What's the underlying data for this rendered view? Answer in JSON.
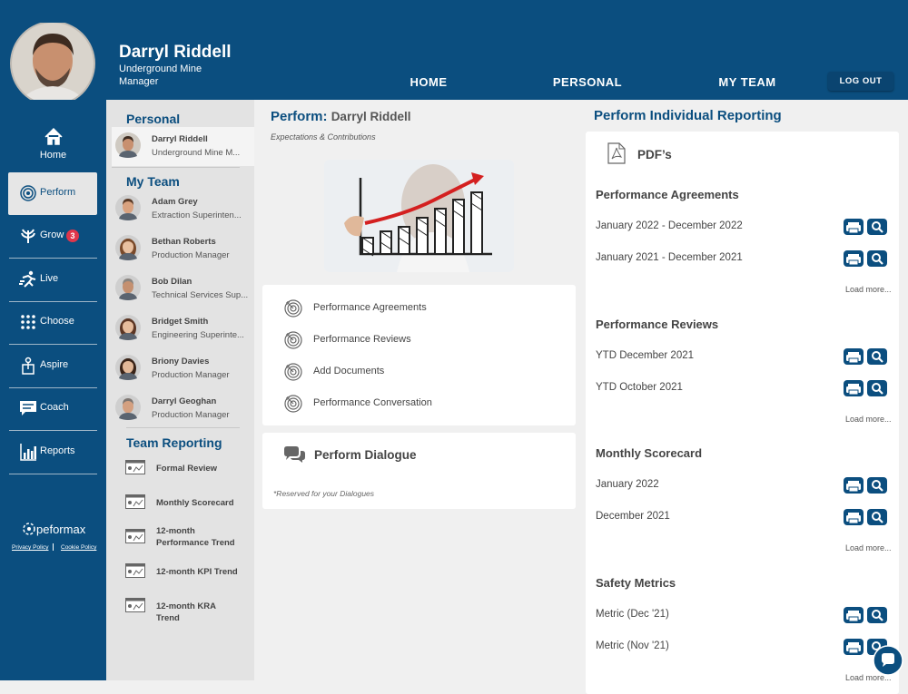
{
  "header": {
    "user_name": "Darryl Riddell",
    "user_role": "Underground Mine Manager",
    "nav": [
      "HOME",
      "PERSONAL",
      "MY TEAM"
    ],
    "logout": "LOG OUT"
  },
  "sidebar": {
    "items": [
      {
        "label": "Home"
      },
      {
        "label": "Perform"
      },
      {
        "label": "Grow",
        "badge": "3"
      },
      {
        "label": "Live"
      },
      {
        "label": "Choose"
      },
      {
        "label": "Aspire"
      },
      {
        "label": "Coach"
      },
      {
        "label": "Reports"
      }
    ],
    "logo": "peformax",
    "links": [
      "Privacy Policy",
      "Cookie Policy"
    ]
  },
  "people_panel": {
    "personal_heading": "Personal",
    "self": {
      "name": "Darryl Riddell",
      "role": "Underground Mine M..."
    },
    "team_heading": "My Team",
    "team": [
      {
        "name": "Adam Grey",
        "role": "Extraction Superinten..."
      },
      {
        "name": "Bethan Roberts",
        "role": "Production Manager"
      },
      {
        "name": "Bob Dilan",
        "role": "Technical Services Sup..."
      },
      {
        "name": "Bridget Smith",
        "role": "Engineering Superinte..."
      },
      {
        "name": "Briony Davies",
        "role": "Production Manager"
      },
      {
        "name": "Darryl Geoghan",
        "role": "Production Manager"
      }
    ],
    "reporting_heading": "Team Reporting",
    "reports": [
      "Formal Review",
      "Monthly Scorecard",
      "12-month Performance Trend",
      "12-month KPI Trend",
      "12-month KRA Trend"
    ]
  },
  "perform": {
    "title_prefix": "Perform:",
    "title_name": "Darryl Riddell",
    "subtitle": "Expectations & Contributions",
    "links": [
      "Performance Agreements",
      "Performance Reviews",
      "Add Documents",
      "Performance Conversation"
    ],
    "dialogue_title": "Perform Dialogue",
    "dialogue_note": "*Reserved for your Dialogues"
  },
  "reporting": {
    "title": "Perform Individual Reporting",
    "pdf_heading": "PDF’s",
    "sections": [
      {
        "title": "Performance Agreements",
        "items": [
          "January 2022 - December 2022",
          "January 2021 - December 2021"
        ],
        "load_more": "Load more..."
      },
      {
        "title": "Performance Reviews",
        "items": [
          "YTD December 2021",
          "YTD October 2021"
        ],
        "load_more": "Load more..."
      },
      {
        "title": "Monthly Scorecard",
        "items": [
          "January 2022",
          "December 2021"
        ],
        "load_more": "Load more..."
      },
      {
        "title": "Safety Metrics",
        "items": [
          "Metric (Dec '21)",
          "Metric (Nov '21)"
        ],
        "load_more": "Load more..."
      }
    ]
  }
}
